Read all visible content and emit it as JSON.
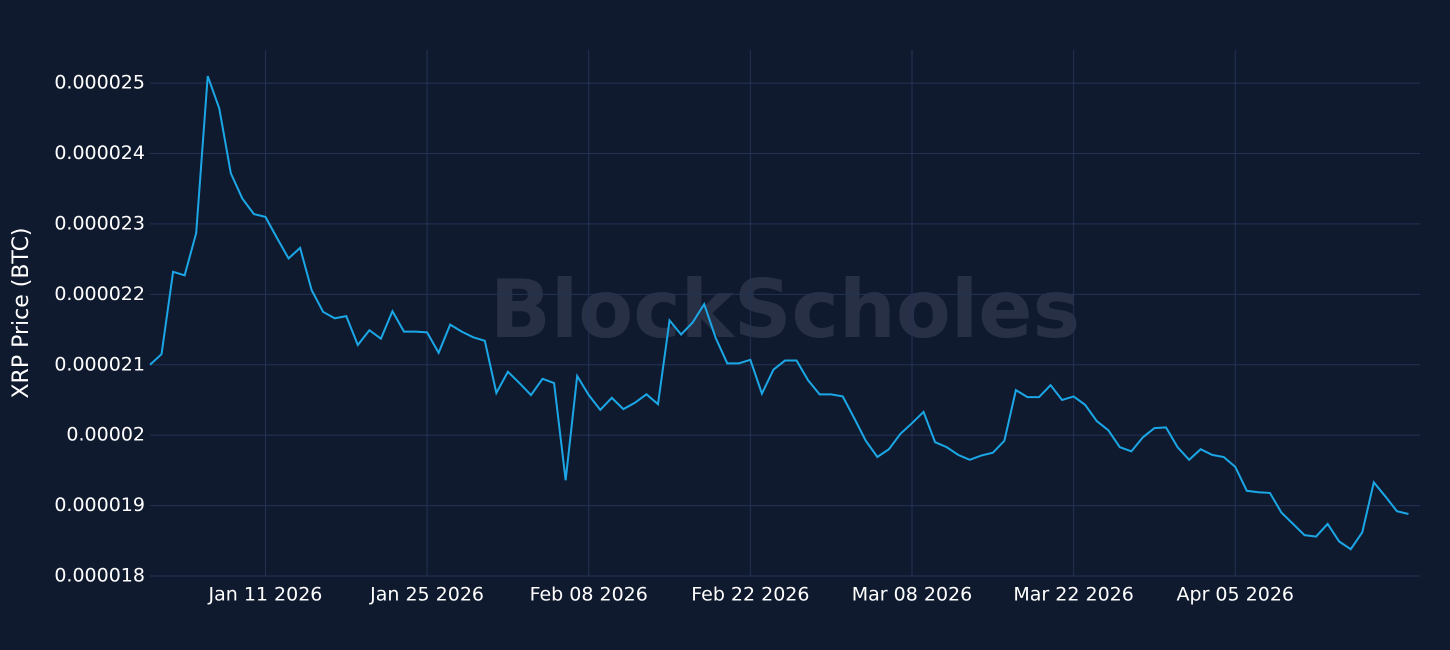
{
  "chart_data": {
    "type": "line",
    "y_label": "XRP Price (BTC)",
    "watermark": "BlockScholes",
    "xlim": [
      "2026-01-01",
      "2026-04-21"
    ],
    "xticks": [
      {
        "value": "2026-01-11",
        "label": "Jan 11 2026"
      },
      {
        "value": "2026-01-25",
        "label": "Jan 25 2026"
      },
      {
        "value": "2026-02-08",
        "label": "Feb 08 2026"
      },
      {
        "value": "2026-02-22",
        "label": "Feb 22 2026"
      },
      {
        "value": "2026-03-08",
        "label": "Mar 08 2026"
      },
      {
        "value": "2026-03-22",
        "label": "Mar 22 2026"
      },
      {
        "value": "2026-04-05",
        "label": "Apr 05 2026"
      }
    ],
    "ylim": [
      1.8e-05,
      2.547e-05
    ],
    "yticks": [
      1.8e-05,
      1.9e-05,
      2e-05,
      2.1e-05,
      2.2e-05,
      2.3e-05,
      2.4e-05,
      2.5e-05
    ],
    "grid": true,
    "x": [
      "2026-01-01",
      "2026-01-02",
      "2026-01-03",
      "2026-01-04",
      "2026-01-05",
      "2026-01-06",
      "2026-01-07",
      "2026-01-08",
      "2026-01-09",
      "2026-01-10",
      "2026-01-11",
      "2026-01-12",
      "2026-01-13",
      "2026-01-14",
      "2026-01-15",
      "2026-01-16",
      "2026-01-17",
      "2026-01-18",
      "2026-01-19",
      "2026-01-20",
      "2026-01-21",
      "2026-01-22",
      "2026-01-23",
      "2026-01-24",
      "2026-01-25",
      "2026-01-26",
      "2026-01-27",
      "2026-01-28",
      "2026-01-29",
      "2026-01-30",
      "2026-01-31",
      "2026-02-01",
      "2026-02-02",
      "2026-02-03",
      "2026-02-04",
      "2026-02-05",
      "2026-02-06",
      "2026-02-07",
      "2026-02-08",
      "2026-02-09",
      "2026-02-10",
      "2026-02-11",
      "2026-02-12",
      "2026-02-13",
      "2026-02-14",
      "2026-02-15",
      "2026-02-16",
      "2026-02-17",
      "2026-02-18",
      "2026-02-19",
      "2026-02-20",
      "2026-02-21",
      "2026-02-22",
      "2026-02-23",
      "2026-02-24",
      "2026-02-25",
      "2026-02-26",
      "2026-02-27",
      "2026-02-28",
      "2026-03-01",
      "2026-03-02",
      "2026-03-03",
      "2026-03-04",
      "2026-03-05",
      "2026-03-06",
      "2026-03-07",
      "2026-03-08",
      "2026-03-09",
      "2026-03-10",
      "2026-03-11",
      "2026-03-12",
      "2026-03-13",
      "2026-03-14",
      "2026-03-15",
      "2026-03-16",
      "2026-03-17",
      "2026-03-18",
      "2026-03-19",
      "2026-03-20",
      "2026-03-21",
      "2026-03-22",
      "2026-03-23",
      "2026-03-24",
      "2026-03-25",
      "2026-03-26",
      "2026-03-27",
      "2026-03-28",
      "2026-03-29",
      "2026-03-30",
      "2026-03-31",
      "2026-04-01",
      "2026-04-02",
      "2026-04-03",
      "2026-04-04",
      "2026-04-05",
      "2026-04-06",
      "2026-04-07",
      "2026-04-08",
      "2026-04-09",
      "2026-04-10",
      "2026-04-11",
      "2026-04-12",
      "2026-04-13",
      "2026-04-14",
      "2026-04-15",
      "2026-04-16",
      "2026-04-17",
      "2026-04-18",
      "2026-04-19",
      "2026-04-20"
    ],
    "series": [
      {
        "name": "XRP Price (BTC)",
        "color": "#1ba7e6",
        "values": [
          2.1e-05,
          2.115e-05,
          2.232e-05,
          2.227e-05,
          2.287e-05,
          2.51e-05,
          2.464e-05,
          2.372e-05,
          2.336e-05,
          2.314e-05,
          2.31e-05,
          2.28e-05,
          2.251e-05,
          2.266e-05,
          2.206e-05,
          2.175e-05,
          2.166e-05,
          2.169e-05,
          2.128e-05,
          2.149e-05,
          2.137e-05,
          2.176e-05,
          2.147e-05,
          2.147e-05,
          2.146e-05,
          2.117e-05,
          2.157e-05,
          2.147e-05,
          2.139e-05,
          2.134e-05,
          2.06e-05,
          2.09e-05,
          2.074e-05,
          2.057e-05,
          2.08e-05,
          2.074e-05,
          1.936e-05,
          2.084e-05,
          2.057e-05,
          2.036e-05,
          2.053e-05,
          2.037e-05,
          2.046e-05,
          2.058e-05,
          2.044e-05,
          2.163e-05,
          2.143e-05,
          2.16e-05,
          2.186e-05,
          2.138e-05,
          2.102e-05,
          2.102e-05,
          2.107e-05,
          2.059e-05,
          2.093e-05,
          2.106e-05,
          2.106e-05,
          2.078e-05,
          2.058e-05,
          2.058e-05,
          2.055e-05,
          2.024e-05,
          1.992e-05,
          1.969e-05,
          1.98e-05,
          2.002e-05,
          2.017e-05,
          2.033e-05,
          1.99e-05,
          1.983e-05,
          1.972e-05,
          1.965e-05,
          1.971e-05,
          1.975e-05,
          1.992e-05,
          2.064e-05,
          2.054e-05,
          2.054e-05,
          2.071e-05,
          2.05e-05,
          2.055e-05,
          2.043e-05,
          2.02e-05,
          2.007e-05,
          1.983e-05,
          1.977e-05,
          1.997e-05,
          2.01e-05,
          2.011e-05,
          1.983e-05,
          1.965e-05,
          1.98e-05,
          1.972e-05,
          1.969e-05,
          1.955e-05,
          1.921e-05,
          1.919e-05,
          1.918e-05,
          1.89e-05,
          1.874e-05,
          1.858e-05,
          1.856e-05,
          1.874e-05,
          1.849e-05,
          1.838e-05,
          1.862e-05,
          1.933e-05,
          1.913e-05,
          1.892e-05,
          1.888e-05
        ]
      }
    ]
  }
}
